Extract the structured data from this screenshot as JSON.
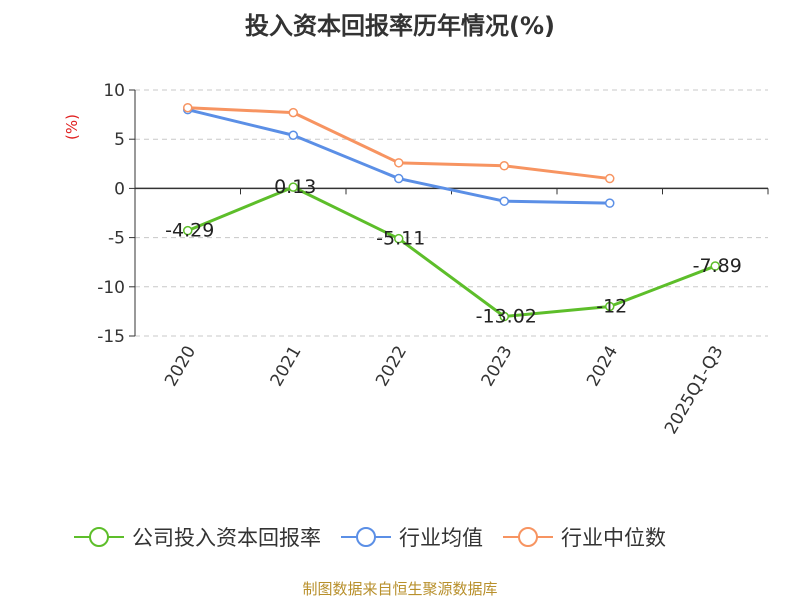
{
  "chart_data": {
    "type": "line",
    "title": "投入资本回报率历年情况(%)",
    "ylabel": "(%)",
    "xlabel": "",
    "categories": [
      "2020",
      "2021",
      "2022",
      "2023",
      "2024",
      "2025Q1-Q3"
    ],
    "ylim": [
      -15,
      10
    ],
    "yticks": [
      10,
      5,
      0,
      -5,
      -10,
      -15
    ],
    "grid": true,
    "legend_position": "bottom",
    "series": [
      {
        "name": "公司投入资本回报率",
        "color": "#5dbe2a",
        "values": [
          -4.29,
          0.13,
          -5.11,
          -13.02,
          -12,
          -7.89
        ],
        "labels": [
          "-4.29",
          "0.13",
          "-5.11",
          "-13.02",
          "-12",
          "-7.89"
        ]
      },
      {
        "name": "行业均值",
        "color": "#5b8fe6",
        "values": [
          8.0,
          5.4,
          1.0,
          -1.3,
          -1.5,
          null
        ]
      },
      {
        "name": "行业中位数",
        "color": "#f79461",
        "values": [
          8.2,
          7.7,
          2.6,
          2.3,
          1.0,
          null
        ]
      }
    ]
  },
  "source": "制图数据来自恒生聚源数据库"
}
